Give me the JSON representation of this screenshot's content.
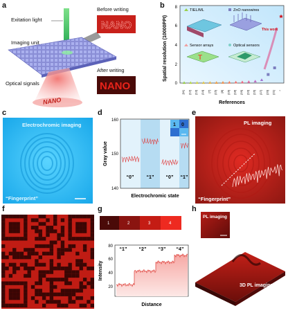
{
  "panel_labels": {
    "a": "a",
    "b": "b",
    "c": "c",
    "d": "d",
    "e": "e",
    "f": "f",
    "g": "g",
    "h": "h"
  },
  "panel_a": {
    "excitation": "Exitation light",
    "imaging_unit": "Imaging unit",
    "optical_signals": "Optical signals",
    "before": "Before writing",
    "after": "After writing",
    "word": "NANO"
  },
  "panel_b": {
    "ylabel": "Spatial resolution (10000PPI)",
    "xlabel": "References",
    "legend": [
      "TIEL/ML",
      "ZnO nanowires",
      "Sensor arrays",
      "Optical sensors"
    ],
    "this_work": "This work",
    "yticks": [
      "0",
      "2",
      "4",
      "6",
      "8"
    ],
    "xticks": [
      "[11]",
      "[12]",
      "[13]",
      "[14]",
      "[7]",
      "[15]",
      "[8]",
      "[16]",
      "[18]",
      "[19]",
      "[10]",
      "[16]",
      "[17]",
      "[20]",
      "[21]",
      "*"
    ]
  },
  "panel_c": {
    "title": "Electrochromic imaging",
    "caption": "“Fingerprint”"
  },
  "panel_d": {
    "ylabel": "Gray value",
    "xlabel": "Electrochromic state",
    "yticks": [
      "140",
      "150",
      "160"
    ],
    "states": [
      "“0”",
      "“1”",
      "“0”",
      "“1”"
    ],
    "inset": [
      "1",
      "0"
    ]
  },
  "panel_e": {
    "title": "PL imaging",
    "caption": "“Fingerprint”"
  },
  "panel_g": {
    "strip": [
      "1",
      "2",
      "3",
      "4"
    ],
    "ylabel": "Intensity",
    "xlabel": "Distance",
    "yticks": [
      "20",
      "40",
      "60",
      "80"
    ],
    "levels": [
      "“1”",
      "“2”",
      "“3”",
      "“4”"
    ]
  },
  "panel_h": {
    "inset_title": "PL imaging",
    "main": "3D PL imaging"
  },
  "colors": {
    "red": "#d9261c",
    "cyan": "#1fb6ee",
    "darkred": "#5a0a08"
  }
}
